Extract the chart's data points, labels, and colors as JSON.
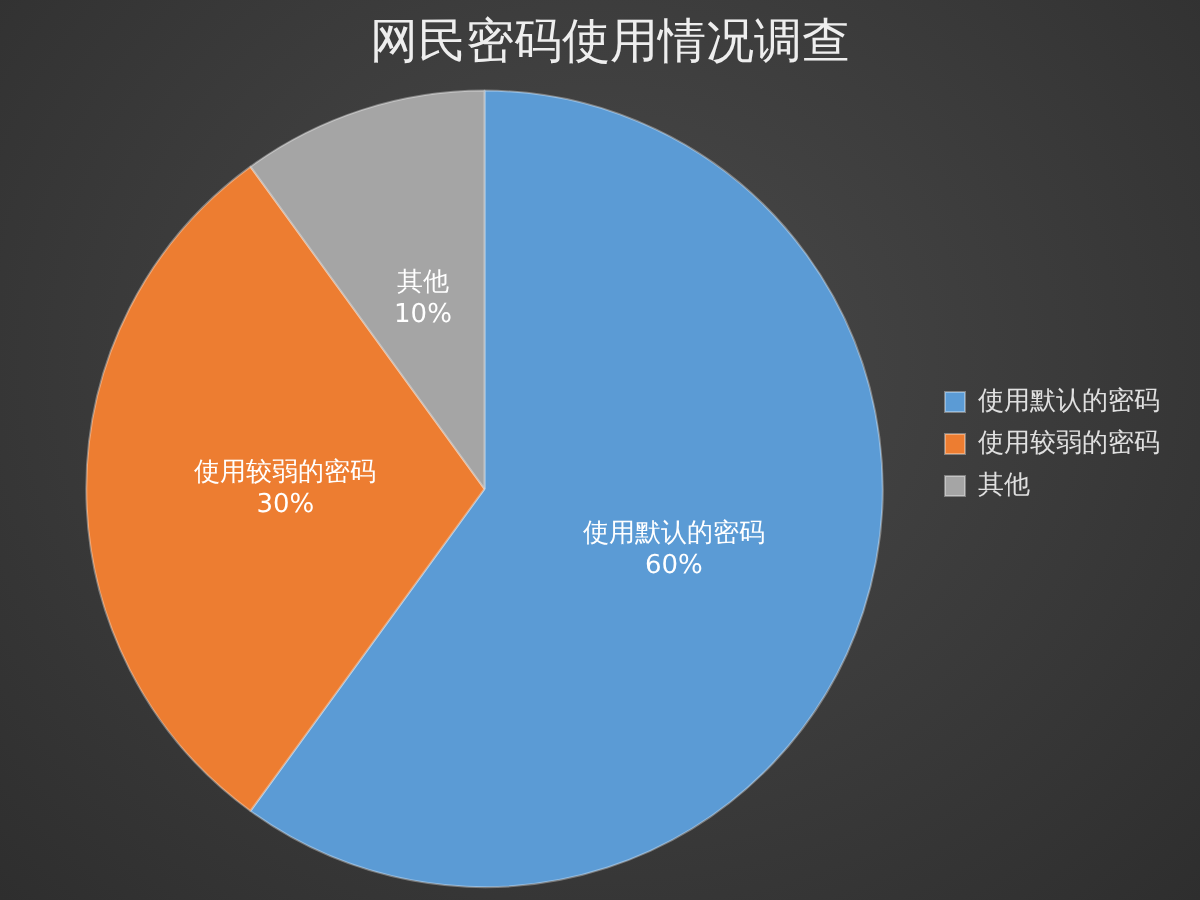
{
  "chart_data": {
    "type": "pie",
    "title": "网民密码使用情况调查",
    "categories": [
      "使用默认的密码",
      "使用较弱的密码",
      "其他"
    ],
    "values": [
      60,
      30,
      10
    ],
    "value_labels": [
      "60%",
      "30%",
      "10%"
    ],
    "colors": [
      "#5b9bd5",
      "#ed7d31",
      "#a5a5a5"
    ],
    "legend": "right"
  }
}
